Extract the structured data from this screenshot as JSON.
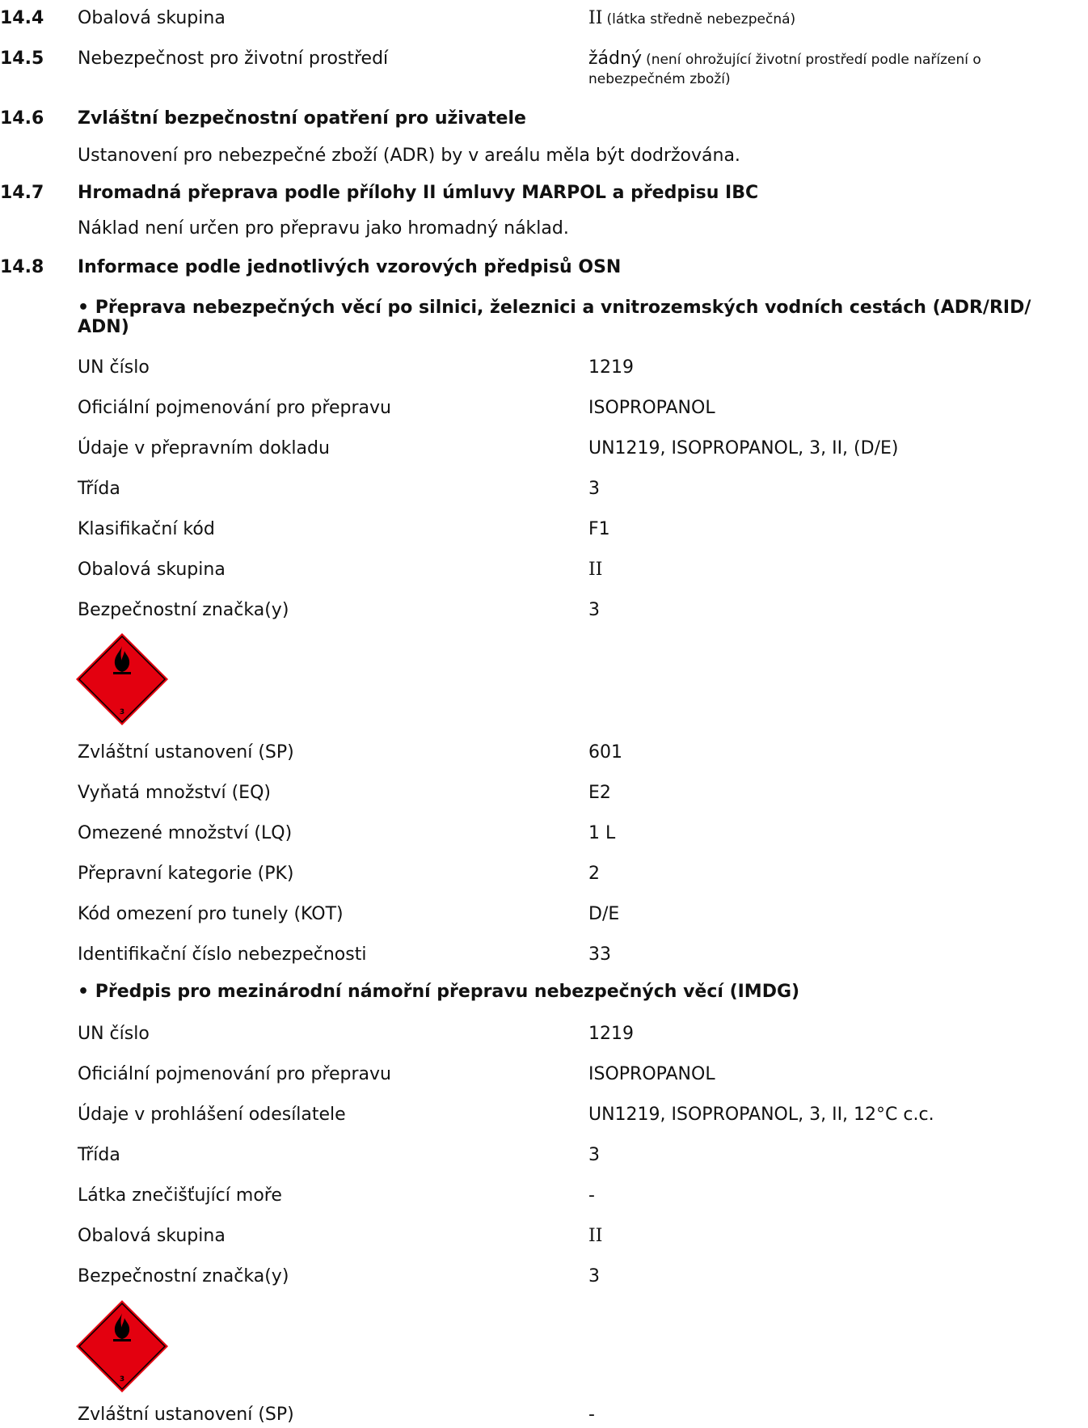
{
  "s14_4": {
    "num": "14.4",
    "label": "Obalová skupina",
    "value_main": "II",
    "value_note": "(látka středně nebezpečná)"
  },
  "s14_5": {
    "num": "14.5",
    "label": "Nebezpečnost pro životní prostředí",
    "value_main": "žádný",
    "value_note_1": "(není ohrožující životní prostředí podle nařízení o",
    "value_note_2": "nebezpečném zboží)"
  },
  "s14_6": {
    "num": "14.6",
    "title": "Zvláštní bezpečnostní opatření pro uživatele",
    "text": "Ustanovení pro nebezpečné zboží (ADR) by v areálu měla být dodržována."
  },
  "s14_7": {
    "num": "14.7",
    "title": "Hromadná přeprava podle přílohy II úmluvy MARPOL a předpisu IBC",
    "text": "Náklad není určen pro přepravu jako hromadný náklad."
  },
  "s14_8": {
    "num": "14.8",
    "title": "Informace podle jednotlivých vzorových předpisů OSN"
  },
  "adr": {
    "heading_1": "• Přeprava nebezpečných věcí po silnici, železnici a vnitrozemských vodních cestách (ADR/RID/",
    "heading_2": "ADN)",
    "rows": [
      {
        "label": "UN číslo",
        "value": "1219"
      },
      {
        "label": "Oficiální pojmenování pro přepravu",
        "value": "ISOPROPANOL"
      },
      {
        "label": "Údaje v přepravním dokladu",
        "value": "UN1219, ISOPROPANOL, 3, II, (D/E)"
      },
      {
        "label": "Třída",
        "value": "3"
      },
      {
        "label": "Klasifikační kód",
        "value": "F1"
      },
      {
        "label": "Obalová skupina",
        "value": "II"
      },
      {
        "label": "Bezpečnostní značka(y)",
        "value": "3"
      }
    ],
    "placard_number": "3",
    "rows2": [
      {
        "label": "Zvláštní ustanovení (SP)",
        "value": "601"
      },
      {
        "label": "Vyňatá množství (EQ)",
        "value": "E2"
      },
      {
        "label": "Omezené množství (LQ)",
        "value": "1 L"
      },
      {
        "label": "Přepravní kategorie (PK)",
        "value": "2"
      },
      {
        "label": "Kód omezení pro tunely (KOT)",
        "value": "D/E"
      },
      {
        "label": "Identifikační číslo nebezpečnosti",
        "value": "33"
      }
    ]
  },
  "imdg": {
    "heading": "• Předpis pro mezinárodní námořní přepravu nebezpečných věcí (IMDG)",
    "rows": [
      {
        "label": "UN číslo",
        "value": "1219"
      },
      {
        "label": "Oficiální pojmenování pro přepravu",
        "value": "ISOPROPANOL"
      },
      {
        "label": "Údaje v prohlášení odesílatele",
        "value": "UN1219, ISOPROPANOL, 3, II, 12°C c.c."
      },
      {
        "label": "Třída",
        "value": "3"
      },
      {
        "label": "Látka znečišťující moře",
        "value": "-"
      },
      {
        "label": "Obalová skupina",
        "value": "II"
      },
      {
        "label": "Bezpečnostní značka(y)",
        "value": "3"
      }
    ],
    "placard_number": "3",
    "rows2": [
      {
        "label": "Zvláštní ustanovení (SP)",
        "value": "-"
      }
    ]
  },
  "colors": {
    "placard_red": "#e3000f",
    "text": "#111111"
  },
  "icons": {
    "placard": "flammable-liquid-placard-icon"
  }
}
